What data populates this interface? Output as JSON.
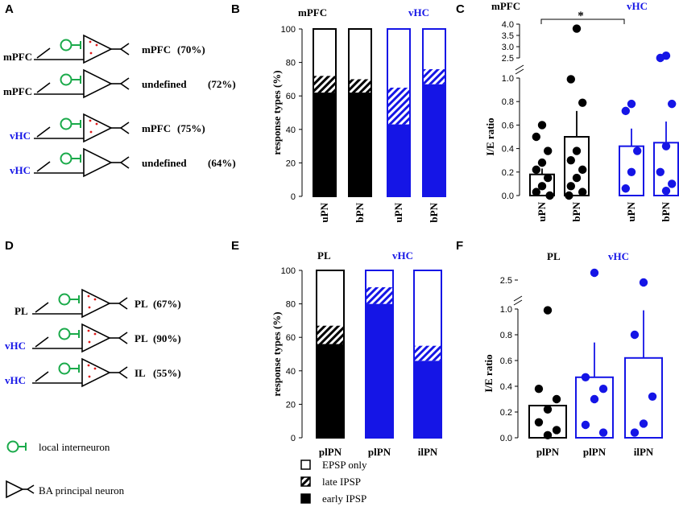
{
  "colors": {
    "black": "#000000",
    "blue": "#1515e6",
    "green": "#1aaa4a",
    "red": "#e01a1a"
  },
  "panel_letters": [
    "A",
    "B",
    "C",
    "D",
    "E",
    "F"
  ],
  "panelA": {
    "rows": [
      {
        "src": "mPFC",
        "tgt": "mPFC",
        "pct": "(70%)",
        "src_color": "black",
        "dots": true
      },
      {
        "src": "mPFC",
        "tgt": "undefined",
        "pct": "(72%)",
        "src_color": "black",
        "dots": false
      },
      {
        "src": "vHC",
        "tgt": "mPFC",
        "pct": "(75%)",
        "src_color": "blue",
        "dots": true
      },
      {
        "src": "vHC",
        "tgt": "undefined",
        "pct": "(64%)",
        "src_color": "blue",
        "dots": false
      }
    ]
  },
  "panelD": {
    "rows": [
      {
        "src": "PL",
        "tgt": "PL",
        "pct": "(67%)",
        "src_color": "black"
      },
      {
        "src": "vHC",
        "tgt": "PL",
        "pct": "(90%)",
        "src_color": "blue"
      },
      {
        "src": "vHC",
        "tgt": "IL",
        "pct": "(55%)",
        "src_color": "blue"
      }
    ]
  },
  "legend_cells": {
    "interneuron": "local interneuron",
    "principal": "BA principal neuron"
  },
  "legend_responses": {
    "epsp": "EPSP only",
    "late": "late IPSP",
    "early": "early IPSP"
  },
  "chart_data": [
    {
      "id": "B",
      "type": "bar",
      "stacked": true,
      "ylabel": "response types (%)",
      "ylim": [
        0,
        100
      ],
      "yticks": [
        0,
        20,
        40,
        60,
        80,
        100
      ],
      "group_labels": [
        "mPFC",
        "vHC"
      ],
      "categories": [
        "uPN",
        "bPN",
        "uPN",
        "bPN"
      ],
      "bar_colors": [
        "black",
        "black",
        "blue",
        "blue"
      ],
      "series": [
        {
          "name": "early IPSP",
          "values": [
            62,
            62,
            43,
            67
          ]
        },
        {
          "name": "late IPSP",
          "values": [
            10,
            8,
            22,
            9
          ]
        },
        {
          "name": "EPSP only",
          "values": [
            28,
            30,
            35,
            24
          ]
        }
      ]
    },
    {
      "id": "C",
      "type": "bar",
      "broken_axis": true,
      "ylabel": "I/E ratio",
      "ylim_lower": [
        0,
        1.0
      ],
      "yticks_lower": [
        0.0,
        0.2,
        0.4,
        0.6,
        0.8,
        1.0
      ],
      "ylim_upper": [
        2.5,
        4.0
      ],
      "yticks_upper": [
        2.5,
        3.0,
        3.5,
        4.0
      ],
      "group_labels": [
        "mPFC",
        "vHC"
      ],
      "significance": "*",
      "categories": [
        "uPN",
        "bPN",
        "uPN",
        "bPN"
      ],
      "bar_colors": [
        "black",
        "black",
        "blue",
        "blue"
      ],
      "values": [
        0.18,
        0.5,
        0.42,
        0.45
      ],
      "errors": [
        0.05,
        0.22,
        0.15,
        0.18
      ],
      "points": [
        [
          0.6,
          0.5,
          0.38,
          0.28,
          0.22,
          0.15,
          0.08,
          0.03,
          0.0
        ],
        [
          3.8,
          0.99,
          0.79,
          0.38,
          0.3,
          0.22,
          0.15,
          0.08,
          0.03,
          0.0
        ],
        [
          0.78,
          0.72,
          0.38,
          0.2,
          0.06
        ],
        [
          2.6,
          2.5,
          0.78,
          0.42,
          0.2,
          0.1,
          0.04
        ]
      ]
    },
    {
      "id": "E",
      "type": "bar",
      "stacked": true,
      "ylabel": "response types (%)",
      "ylim": [
        0,
        100
      ],
      "yticks": [
        0,
        20,
        40,
        60,
        80,
        100
      ],
      "group_labels": [
        "PL",
        "vHC"
      ],
      "categories": [
        "plPN",
        "plPN",
        "ilPN"
      ],
      "bar_colors": [
        "black",
        "blue",
        "blue"
      ],
      "series": [
        {
          "name": "early IPSP",
          "values": [
            56,
            80,
            46
          ]
        },
        {
          "name": "late IPSP",
          "values": [
            11,
            10,
            9
          ]
        },
        {
          "name": "EPSP only",
          "values": [
            33,
            10,
            45
          ]
        }
      ]
    },
    {
      "id": "F",
      "type": "bar",
      "broken_axis": true,
      "ylabel": "I/E ratio",
      "ylim_lower": [
        0,
        1.0
      ],
      "yticks_lower": [
        0.0,
        0.2,
        0.4,
        0.6,
        0.8,
        1.0
      ],
      "upper_tick": 2.5,
      "group_labels": [
        "PL",
        "vHC"
      ],
      "categories": [
        "plPN",
        "plPN",
        "ilPN"
      ],
      "bar_colors": [
        "black",
        "blue",
        "blue"
      ],
      "values": [
        0.25,
        0.47,
        0.62
      ],
      "errors": [
        0.0,
        0.27,
        0.37
      ],
      "points": [
        [
          0.99,
          0.38,
          0.3,
          0.22,
          0.12,
          0.06,
          0.02
        ],
        [
          2.8,
          0.47,
          0.38,
          0.3,
          0.1,
          0.04
        ],
        [
          2.4,
          0.8,
          0.32,
          0.11,
          0.04
        ]
      ]
    }
  ]
}
